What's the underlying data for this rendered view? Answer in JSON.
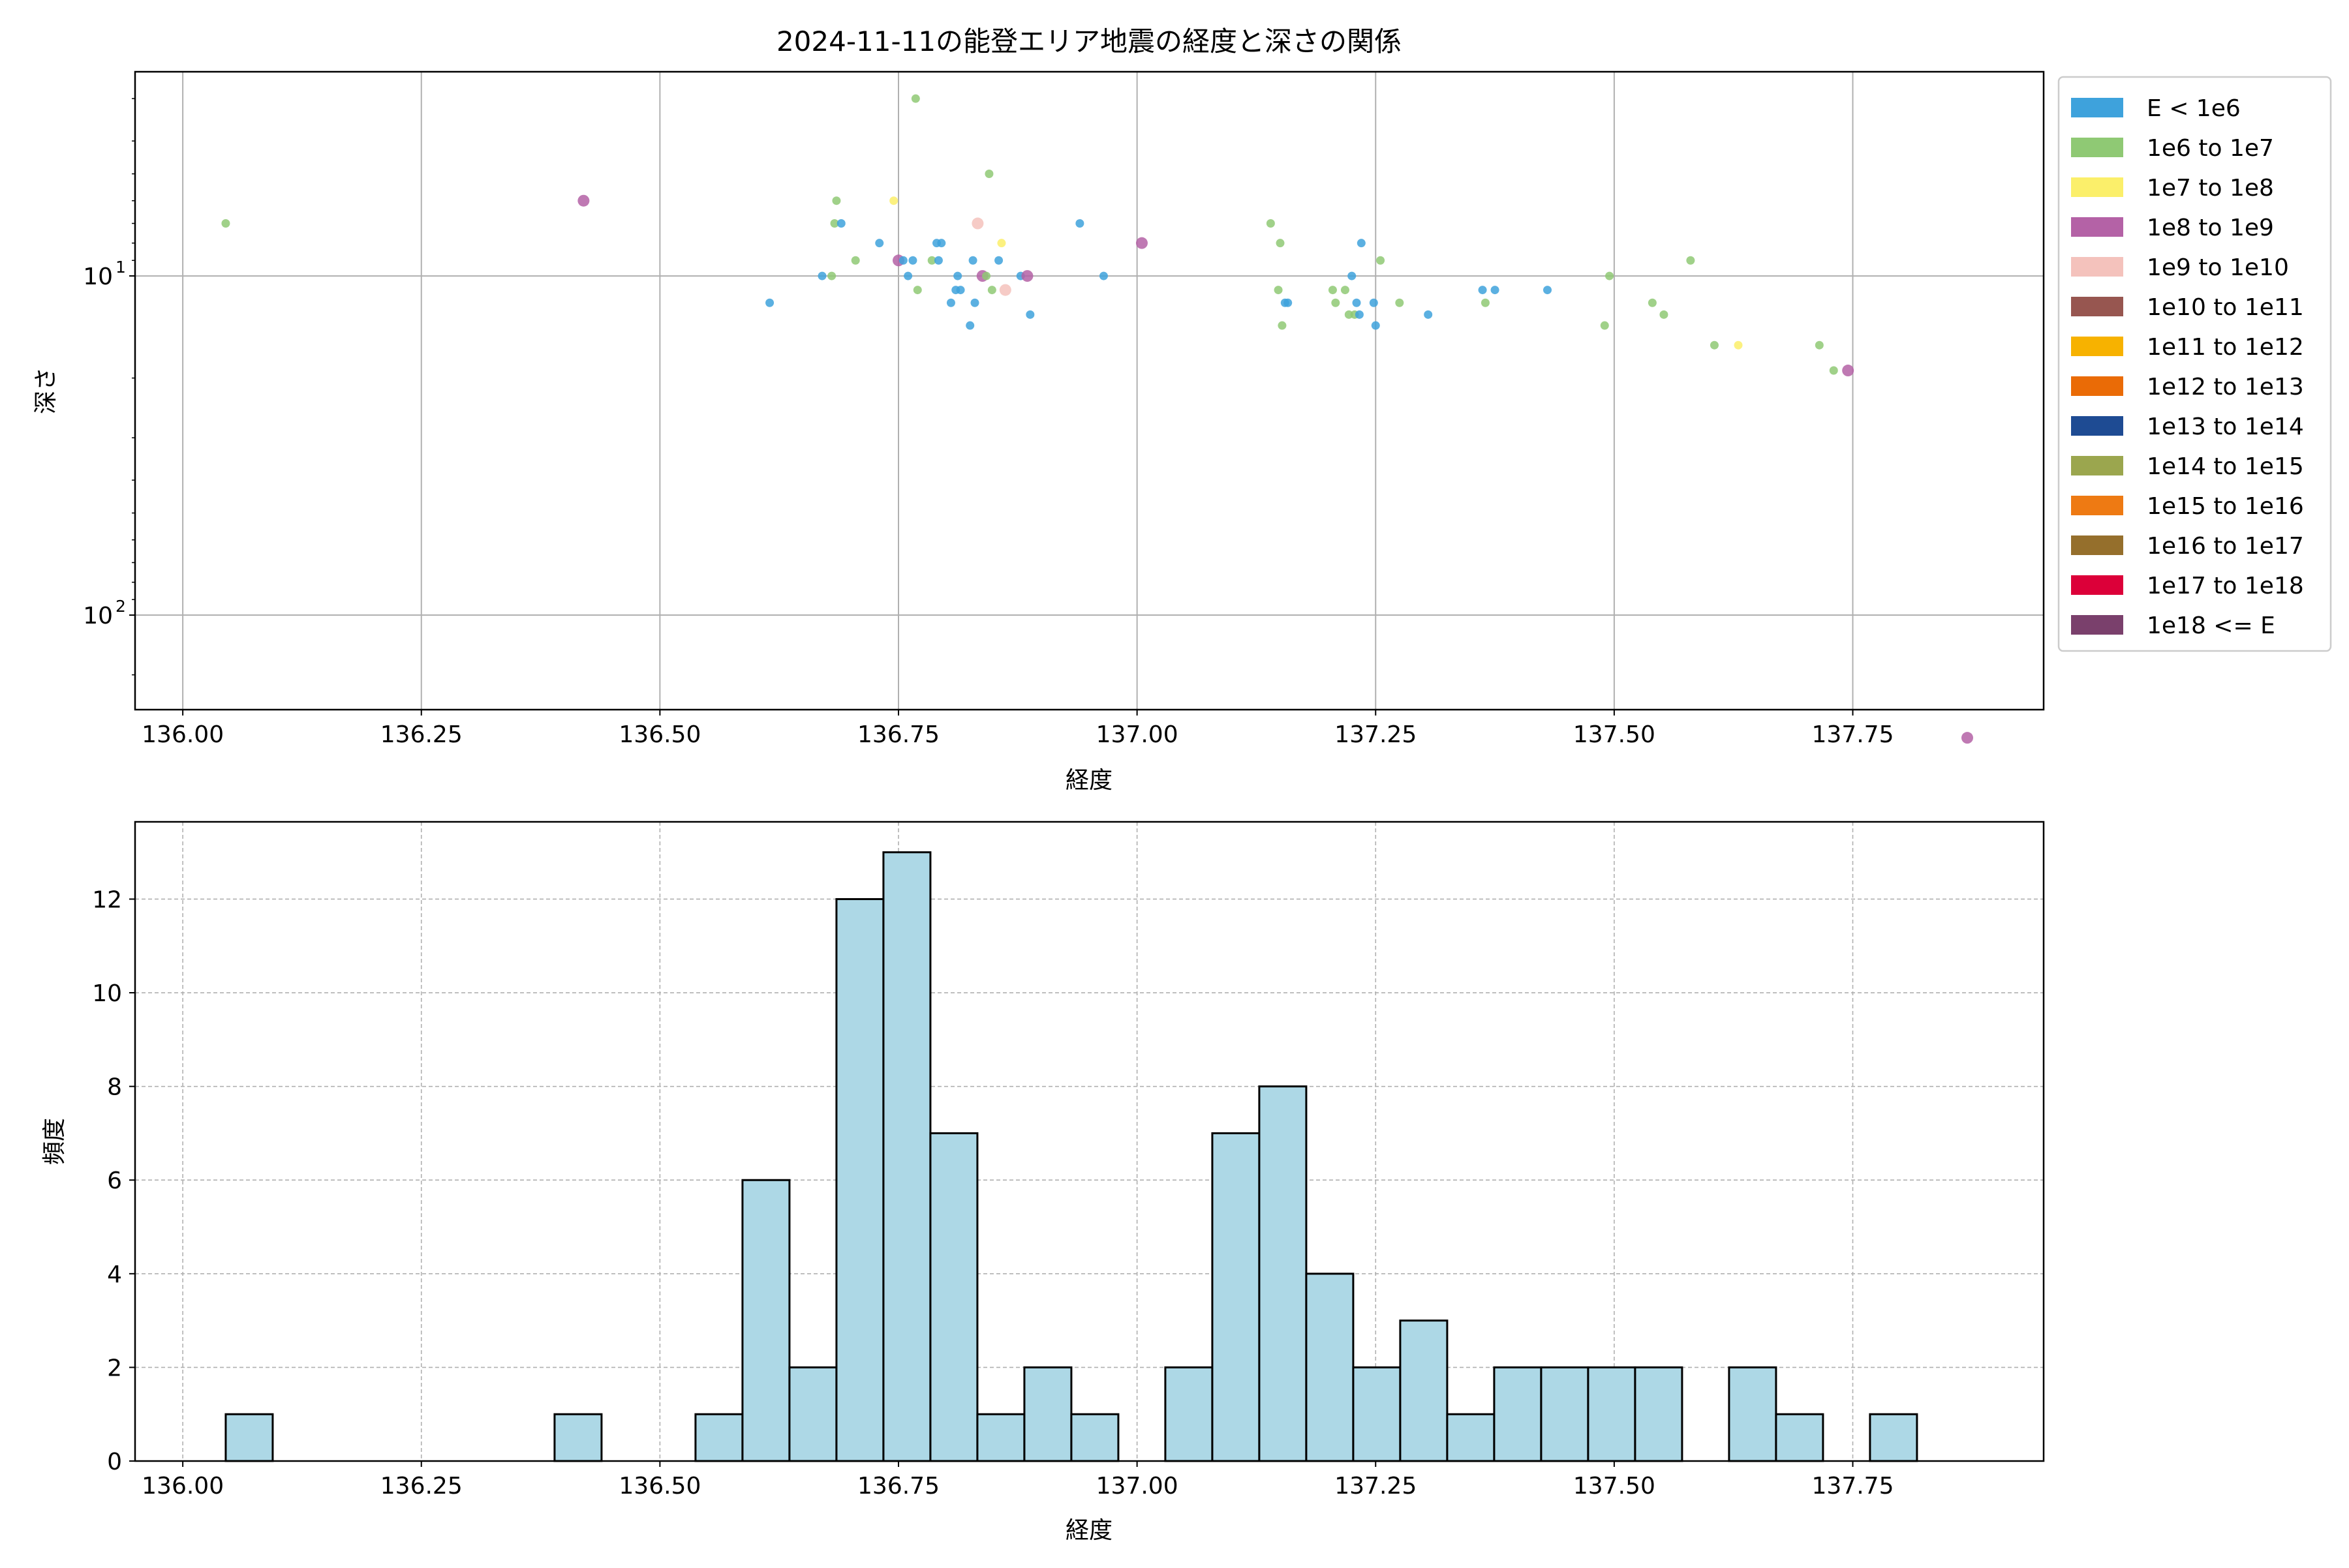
{
  "chart_data": [
    {
      "type": "scatter",
      "title": "2024-11-11の能登エリア地震の経度と深さの関係",
      "xlabel": "経度",
      "ylabel": "深さ",
      "xlim": [
        135.95,
        137.95
      ],
      "ylim": [
        190,
        2.5
      ],
      "yscale": "log",
      "y_inverted": true,
      "grid": true,
      "xticks": [
        "136.00",
        "136.25",
        "136.50",
        "136.75",
        "137.00",
        "137.25",
        "137.50",
        "137.75"
      ],
      "yticks": [
        {
          "value": 10,
          "label": "10",
          "sup": "1"
        },
        {
          "value": 100,
          "label": "10",
          "sup": "2"
        }
      ],
      "legend_position": "outside-right",
      "legend": [
        {
          "label": "E < 1e6",
          "color": "#3ea2dc"
        },
        {
          "label": "1e6 to 1e7",
          "color": "#8fc974"
        },
        {
          "label": "1e7 to 1e8",
          "color": "#fbef6a"
        },
        {
          "label": "1e8 to 1e9",
          "color": "#b462a6"
        },
        {
          "label": "1e9 to 1e10",
          "color": "#f4c2bc"
        },
        {
          "label": "1e10 to 1e11",
          "color": "#975650"
        },
        {
          "label": "1e11 to 1e12",
          "color": "#f7b200"
        },
        {
          "label": "1e12 to 1e13",
          "color": "#ea6b06"
        },
        {
          "label": "1e13 to 1e14",
          "color": "#1e4b93"
        },
        {
          "label": "1e14 to 1e15",
          "color": "#9ba64e"
        },
        {
          "label": "1e15 to 1e16",
          "color": "#ee7a13"
        },
        {
          "label": "1e16 to 1e17",
          "color": "#956f2c"
        },
        {
          "label": "1e17 to 1e18",
          "color": "#dc0039"
        },
        {
          "label": "1e18 <= E",
          "color": "#7a406c"
        }
      ],
      "points": [
        {
          "x": 136.045,
          "y": 7.0,
          "c": 1
        },
        {
          "x": 136.42,
          "y": 6.0,
          "c": 3
        },
        {
          "x": 136.615,
          "y": 12.0,
          "c": 0
        },
        {
          "x": 136.67,
          "y": 10.0,
          "c": 0
        },
        {
          "x": 136.68,
          "y": 10.0,
          "c": 1
        },
        {
          "x": 136.683,
          "y": 7.0,
          "c": 1
        },
        {
          "x": 136.685,
          "y": 6.0,
          "c": 1
        },
        {
          "x": 136.69,
          "y": 7.0,
          "c": 0
        },
        {
          "x": 136.705,
          "y": 9.0,
          "c": 1
        },
        {
          "x": 136.73,
          "y": 8.0,
          "c": 0
        },
        {
          "x": 136.745,
          "y": 6.0,
          "c": 2
        },
        {
          "x": 136.75,
          "y": 9.0,
          "c": 3
        },
        {
          "x": 136.755,
          "y": 9.0,
          "c": 0
        },
        {
          "x": 136.76,
          "y": 10.0,
          "c": 0
        },
        {
          "x": 136.765,
          "y": 9.0,
          "c": 0
        },
        {
          "x": 136.768,
          "y": 3.0,
          "c": 1
        },
        {
          "x": 136.77,
          "y": 11.0,
          "c": 1
        },
        {
          "x": 136.785,
          "y": 9.0,
          "c": 1
        },
        {
          "x": 136.79,
          "y": 8.0,
          "c": 0
        },
        {
          "x": 136.792,
          "y": 9.0,
          "c": 0
        },
        {
          "x": 136.795,
          "y": 8.0,
          "c": 0
        },
        {
          "x": 136.805,
          "y": 12.0,
          "c": 0
        },
        {
          "x": 136.81,
          "y": 11.0,
          "c": 0
        },
        {
          "x": 136.812,
          "y": 10.0,
          "c": 0
        },
        {
          "x": 136.815,
          "y": 11.0,
          "c": 0
        },
        {
          "x": 136.825,
          "y": 14.0,
          "c": 0
        },
        {
          "x": 136.828,
          "y": 9.0,
          "c": 0
        },
        {
          "x": 136.83,
          "y": 12.0,
          "c": 0
        },
        {
          "x": 136.833,
          "y": 7.0,
          "c": 4
        },
        {
          "x": 136.838,
          "y": 10.0,
          "c": 3
        },
        {
          "x": 136.842,
          "y": 10.0,
          "c": 1
        },
        {
          "x": 136.845,
          "y": 5.0,
          "c": 1
        },
        {
          "x": 136.848,
          "y": 11.0,
          "c": 1
        },
        {
          "x": 136.855,
          "y": 9.0,
          "c": 0
        },
        {
          "x": 136.858,
          "y": 8.0,
          "c": 2
        },
        {
          "x": 136.862,
          "y": 11.0,
          "c": 4
        },
        {
          "x": 136.878,
          "y": 10.0,
          "c": 0
        },
        {
          "x": 136.885,
          "y": 10.0,
          "c": 3
        },
        {
          "x": 136.888,
          "y": 13.0,
          "c": 0
        },
        {
          "x": 136.94,
          "y": 7.0,
          "c": 0
        },
        {
          "x": 136.965,
          "y": 10.0,
          "c": 0
        },
        {
          "x": 137.005,
          "y": 8.0,
          "c": 3
        },
        {
          "x": 137.14,
          "y": 7.0,
          "c": 1
        },
        {
          "x": 137.148,
          "y": 11.0,
          "c": 1
        },
        {
          "x": 137.15,
          "y": 8.0,
          "c": 1
        },
        {
          "x": 137.152,
          "y": 14.0,
          "c": 1
        },
        {
          "x": 137.155,
          "y": 12.0,
          "c": 0
        },
        {
          "x": 137.158,
          "y": 12.0,
          "c": 0
        },
        {
          "x": 137.205,
          "y": 11.0,
          "c": 1
        },
        {
          "x": 137.208,
          "y": 12.0,
          "c": 1
        },
        {
          "x": 137.218,
          "y": 11.0,
          "c": 1
        },
        {
          "x": 137.222,
          "y": 13.0,
          "c": 1
        },
        {
          "x": 137.225,
          "y": 10.0,
          "c": 0
        },
        {
          "x": 137.228,
          "y": 13.0,
          "c": 1
        },
        {
          "x": 137.23,
          "y": 12.0,
          "c": 0
        },
        {
          "x": 137.233,
          "y": 13.0,
          "c": 0
        },
        {
          "x": 137.235,
          "y": 8.0,
          "c": 0
        },
        {
          "x": 137.248,
          "y": 12.0,
          "c": 0
        },
        {
          "x": 137.25,
          "y": 14.0,
          "c": 0
        },
        {
          "x": 137.255,
          "y": 9.0,
          "c": 1
        },
        {
          "x": 137.275,
          "y": 12.0,
          "c": 1
        },
        {
          "x": 137.305,
          "y": 13.0,
          "c": 0
        },
        {
          "x": 137.362,
          "y": 11.0,
          "c": 0
        },
        {
          "x": 137.365,
          "y": 12.0,
          "c": 1
        },
        {
          "x": 137.375,
          "y": 11.0,
          "c": 0
        },
        {
          "x": 137.43,
          "y": 11.0,
          "c": 0
        },
        {
          "x": 137.49,
          "y": 14.0,
          "c": 1
        },
        {
          "x": 137.495,
          "y": 10.0,
          "c": 1
        },
        {
          "x": 137.54,
          "y": 12.0,
          "c": 1
        },
        {
          "x": 137.552,
          "y": 13.0,
          "c": 1
        },
        {
          "x": 137.58,
          "y": 9.0,
          "c": 1
        },
        {
          "x": 137.605,
          "y": 16.0,
          "c": 1
        },
        {
          "x": 137.63,
          "y": 16.0,
          "c": 2
        },
        {
          "x": 137.715,
          "y": 16.0,
          "c": 1
        },
        {
          "x": 137.73,
          "y": 19.0,
          "c": 1
        },
        {
          "x": 137.745,
          "y": 19.0,
          "c": 3
        },
        {
          "x": 137.87,
          "y": 230.0,
          "c": 3
        }
      ]
    },
    {
      "type": "bar",
      "title": "",
      "xlabel": "経度",
      "ylabel": "頻度",
      "xlim": [
        135.95,
        137.95
      ],
      "ylim": [
        0,
        13.65
      ],
      "grid": true,
      "grid_style": "dashed",
      "bar_color": "#add8e6",
      "edge_color": "#000000",
      "xticks": [
        "136.00",
        "136.25",
        "136.50",
        "136.75",
        "137.00",
        "137.25",
        "137.50",
        "137.75"
      ],
      "yticks": [
        "0",
        "2",
        "4",
        "6",
        "8",
        "10",
        "12"
      ],
      "bin_start": 136.045,
      "bin_width": 0.04923,
      "counts": [
        1,
        0,
        0,
        0,
        0,
        0,
        0,
        1,
        0,
        0,
        1,
        6,
        2,
        12,
        13,
        7,
        1,
        2,
        1,
        0,
        2,
        7,
        8,
        4,
        2,
        3,
        1,
        2,
        2,
        2,
        2,
        0,
        2,
        1,
        0,
        1
      ]
    }
  ]
}
